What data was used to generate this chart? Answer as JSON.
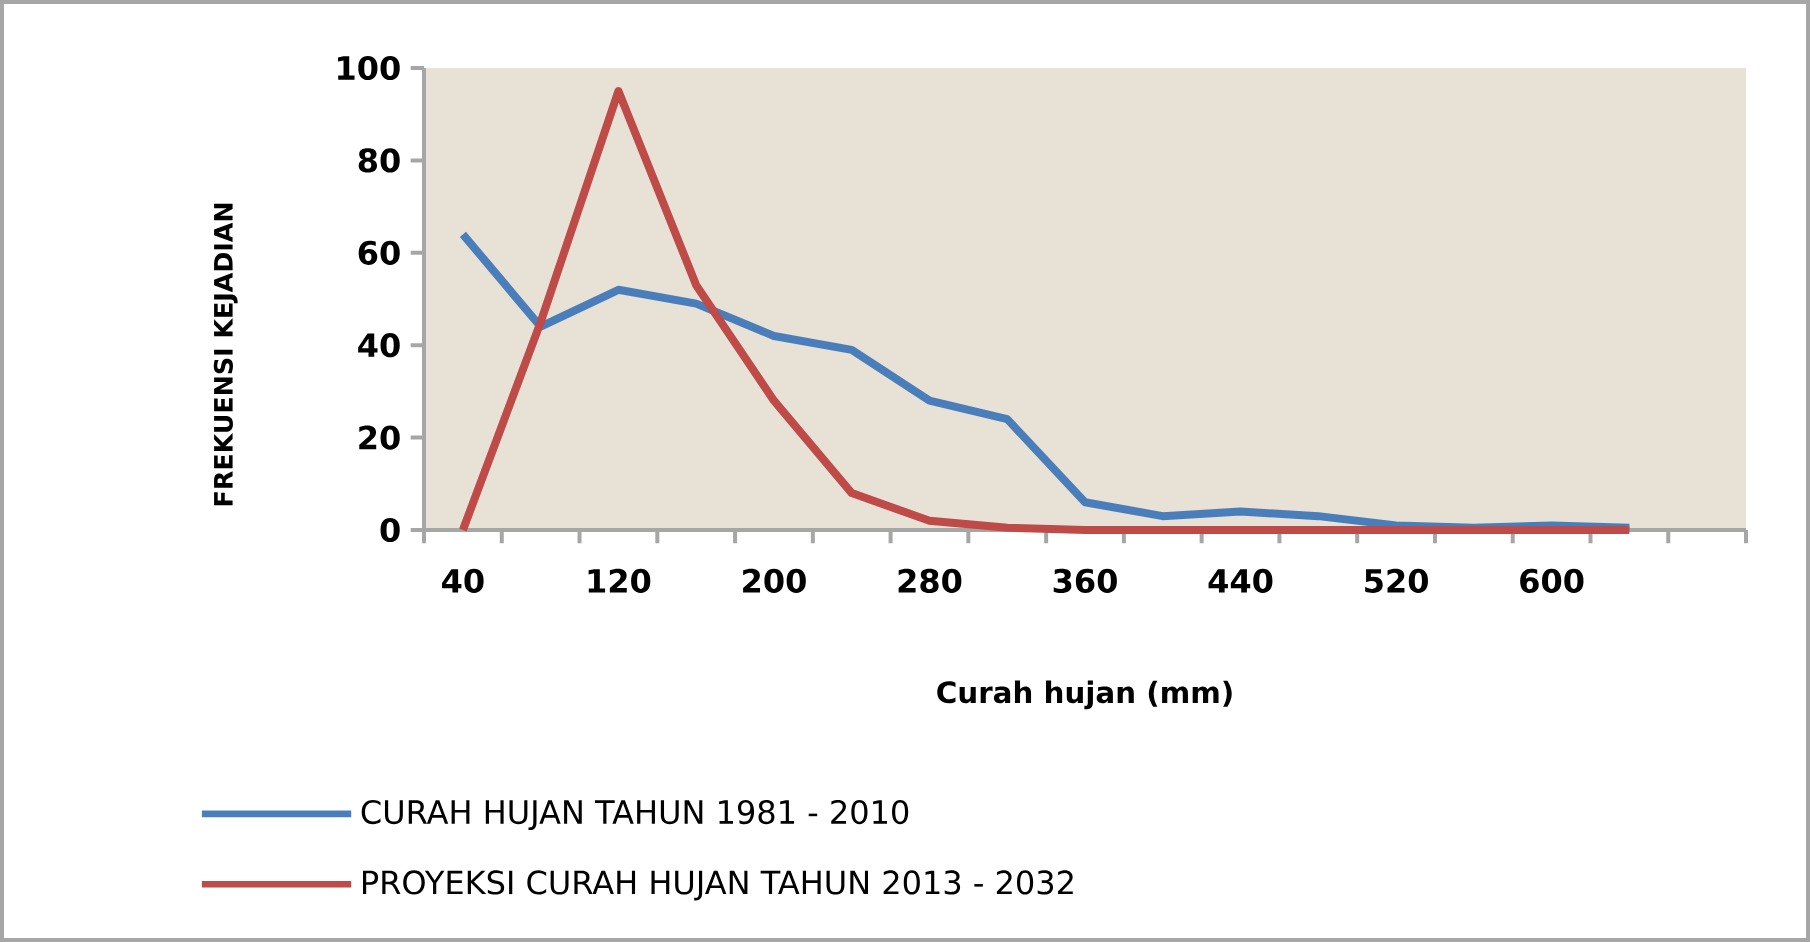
{
  "chart_data": {
    "type": "line",
    "xlabel": "Curah hujan (mm)",
    "ylabel": "FREKUENSI KEJADIAN",
    "categories": [
      "40",
      null,
      "120",
      null,
      "200",
      null,
      "280",
      null,
      "360",
      null,
      "440",
      null,
      "520",
      null,
      "600",
      null,
      null
    ],
    "series": [
      {
        "name": "CURAH HUJAN TAHUN 1981 - 2010",
        "color": "#4a7ebb",
        "values": [
          64,
          44,
          52,
          49,
          42,
          39,
          28,
          24,
          6,
          3,
          4,
          3,
          1,
          0.5,
          1,
          0.5,
          null
        ]
      },
      {
        "name": "PROYEKSI CURAH HUJAN TAHUN 2013 - 2032",
        "color": "#be4b48",
        "values": [
          0,
          45,
          95,
          53,
          28,
          8,
          2,
          0.5,
          0,
          0,
          0,
          0,
          0,
          0,
          0,
          0,
          null
        ]
      }
    ],
    "ylim": [
      0,
      100
    ],
    "yticks": [
      0,
      20,
      40,
      60,
      80,
      100
    ],
    "grid": false,
    "legend": "bottom left",
    "marker": "none",
    "line_style": "solid"
  }
}
